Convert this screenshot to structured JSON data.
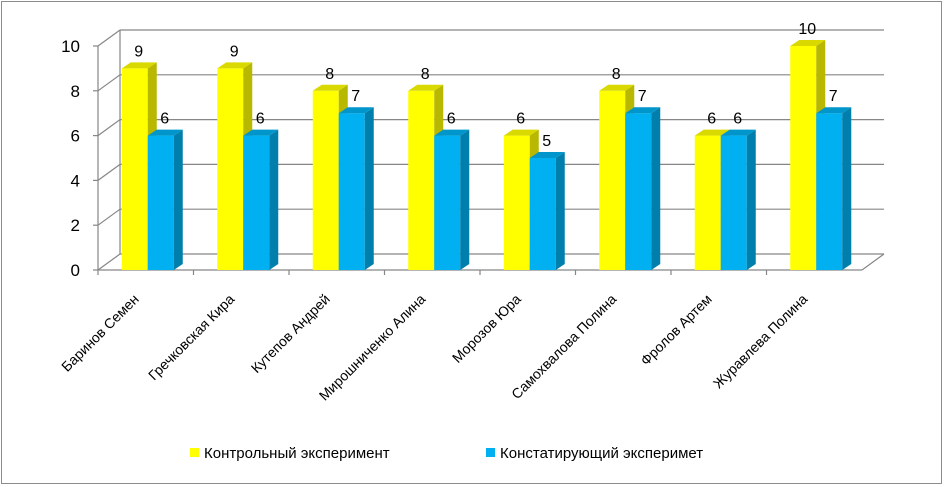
{
  "chart_data": {
    "type": "bar",
    "categories": [
      "Баринов Семен",
      "Гречковская Кира",
      "Кутепов Андрей",
      "Мирошниченко Алина",
      "Морозов Юра",
      "Самохвалова Полина",
      "Фролов Артем",
      "Журавлева Полина"
    ],
    "series": [
      {
        "name": "Контрольный эксперимент",
        "values": [
          9,
          9,
          8,
          8,
          6,
          8,
          6,
          10
        ],
        "color": "#ffff00"
      },
      {
        "name": "Констатирующий эксперимет",
        "values": [
          6,
          6,
          7,
          6,
          5,
          7,
          6,
          7
        ],
        "color": "#00b0f0"
      }
    ],
    "y_ticks": [
      "0",
      "2",
      "4",
      "6",
      "8",
      "10"
    ],
    "ylim": [
      0,
      10
    ],
    "grid": true,
    "legend_position": "bottom",
    "three_d": true
  }
}
